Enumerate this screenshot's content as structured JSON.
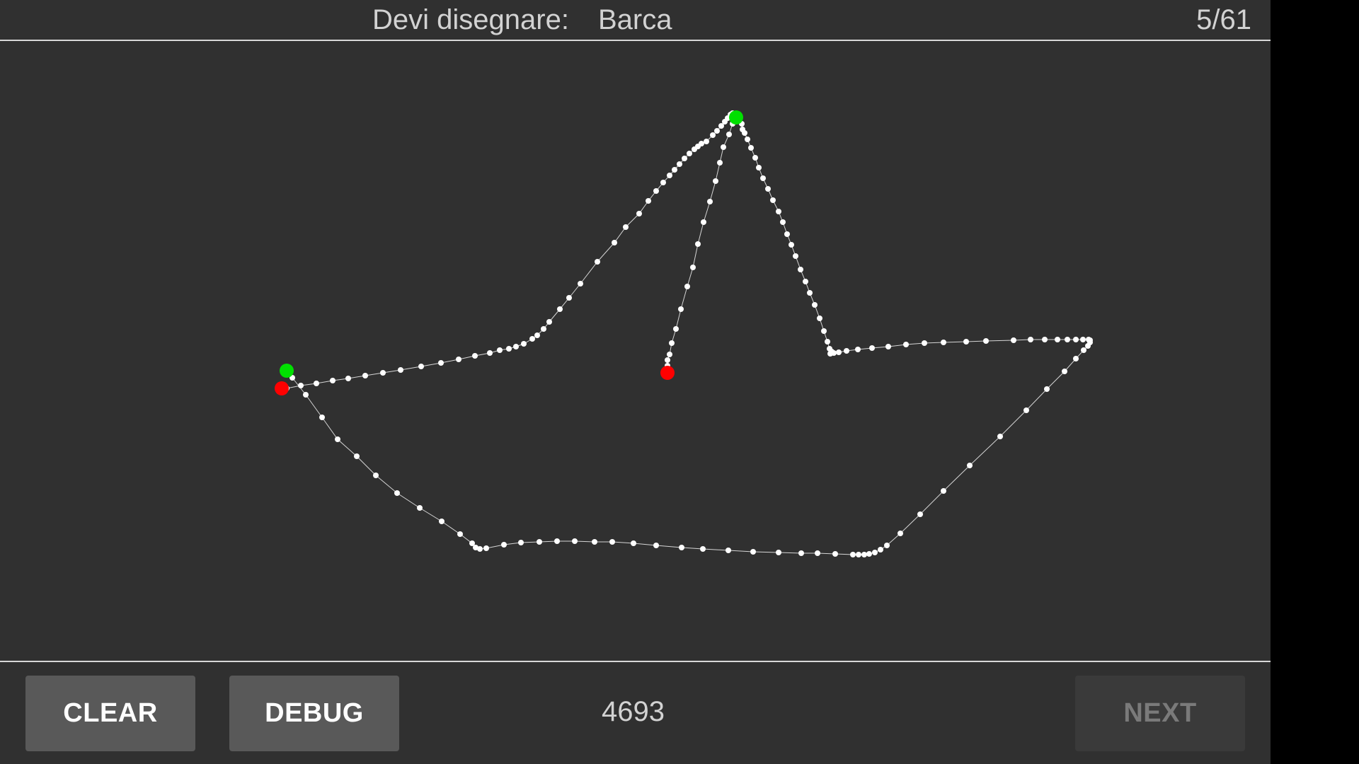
{
  "header": {
    "prompt_label": "Devi disegnare:",
    "prompt_word": "Barca",
    "progress": "5/61"
  },
  "toolbar": {
    "clear_label": "CLEAR",
    "debug_label": "DEBUG",
    "score": "4693",
    "next_label": "NEXT"
  },
  "colors": {
    "background": "#303030",
    "text": "#d2d2d2",
    "stroke_point": "#ffffff",
    "stroke_start": "#00e000",
    "stroke_end": "#ff0000",
    "button": "#595959",
    "button_disabled": "#3a3a3a"
  }
}
